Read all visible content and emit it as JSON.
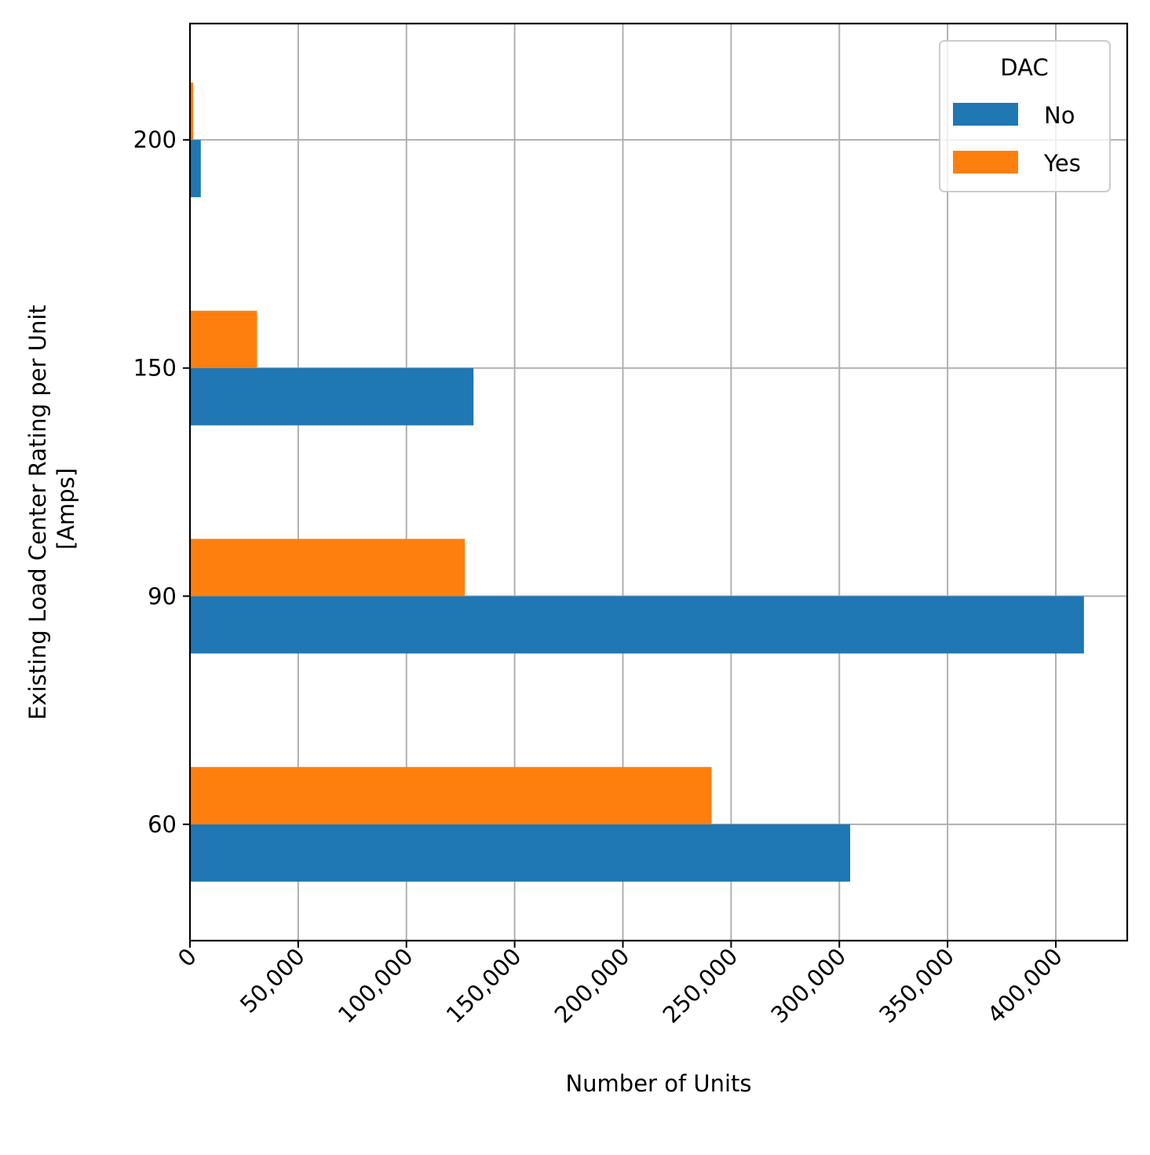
{
  "chart_data": {
    "type": "bar",
    "orientation": "horizontal",
    "categories": [
      "60",
      "90",
      "150",
      "200"
    ],
    "series": [
      {
        "name": "No",
        "color": "#1f77b4",
        "values": [
          305000,
          413000,
          131000,
          5000
        ]
      },
      {
        "name": "Yes",
        "color": "#ff7f0e",
        "values": [
          241000,
          127000,
          31000,
          1500
        ]
      }
    ],
    "xlabel": "Number of Units",
    "ylabel": [
      "Existing Load Center Rating per Unit",
      "[Amps]"
    ],
    "xlim": [
      0,
      433000
    ],
    "xticks": [
      0,
      50000,
      100000,
      150000,
      200000,
      250000,
      300000,
      350000,
      400000
    ],
    "xtick_labels": [
      "0",
      "50,000",
      "100,000",
      "150,000",
      "200,000",
      "250,000",
      "300,000",
      "350,000",
      "400,000"
    ],
    "grid": true,
    "legend": {
      "title": "DAC",
      "placement": "top-right"
    }
  }
}
